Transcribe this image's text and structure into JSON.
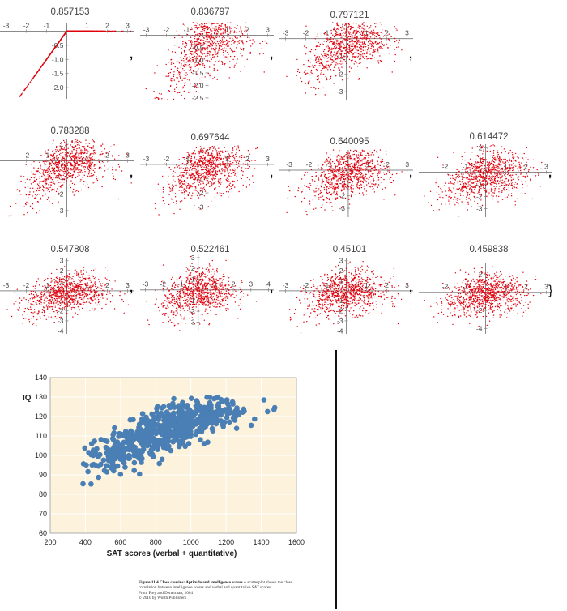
{
  "separators": {
    "comma": ",",
    "close_brace": "}"
  },
  "scatter_color": "#e0000c",
  "chart_data": [
    {
      "type": "scatter",
      "title": "0.857153",
      "xlim": [
        -3.3,
        3.3
      ],
      "ylim": [
        -2.4,
        0.3
      ],
      "xticks": [
        -3,
        -2,
        -1,
        1,
        2,
        3
      ],
      "yticks": [
        -0.5,
        -1.0,
        -1.5,
        -2.0
      ],
      "ytick_labels": [
        "-0.5",
        "-1.0",
        "-1.5",
        "-2.0"
      ],
      "correlation": 0.857153
    },
    {
      "type": "scatter",
      "title": "0.836797",
      "xlim": [
        -3.3,
        3.3
      ],
      "ylim": [
        -2.6,
        0.5
      ],
      "xticks": [
        -3,
        -2,
        -1,
        1,
        2,
        3
      ],
      "yticks": [
        -0.5,
        -1.0,
        -1.5,
        -2.0,
        -2.5
      ],
      "ytick_labels": [
        "-0.5",
        "-1.0",
        "-1.5",
        "-2.0",
        "-2.5"
      ],
      "correlation": 0.836797
    },
    {
      "type": "scatter",
      "title": "0.797121",
      "xlim": [
        -3.3,
        3.3
      ],
      "ylim": [
        -3.5,
        0.9
      ],
      "xticks": [
        -3,
        -2,
        -1,
        1,
        2,
        3
      ],
      "yticks": [
        -1,
        -2,
        -3
      ],
      "ytick_labels": [
        "-1",
        "-2",
        "-3"
      ],
      "correlation": 0.797121
    },
    {
      "type": "scatter",
      "title": "0.783288",
      "xlim": [
        -3.3,
        3.3
      ],
      "ylim": [
        -3.4,
        1.3
      ],
      "xticks": [
        -2,
        -1,
        1,
        2,
        3
      ],
      "yticks": [
        1,
        -1,
        -2,
        -3
      ],
      "ytick_labels": [
        "1",
        "-1",
        "-2",
        "-3"
      ],
      "correlation": 0.783288
    },
    {
      "type": "scatter",
      "title": "0.697644",
      "xlim": [
        -3.3,
        3.3
      ],
      "ylim": [
        -3.7,
        1.3
      ],
      "xticks": [
        -3,
        -2,
        -1,
        1,
        2,
        3
      ],
      "yticks": [
        1,
        -1,
        -2,
        -3
      ],
      "ytick_labels": [
        "1",
        "-1",
        "-2",
        "-3"
      ],
      "correlation": 0.697644
    },
    {
      "type": "scatter",
      "title": "0.640095",
      "xlim": [
        -3.5,
        3.3
      ],
      "ylim": [
        -3.7,
        1.6
      ],
      "xticks": [
        -3,
        -2,
        -1,
        1,
        2,
        3
      ],
      "yticks": [
        1,
        -1,
        -2,
        -3
      ],
      "ytick_labels": [
        "1",
        "-1",
        "-2",
        "-3"
      ],
      "correlation": 0.640095
    },
    {
      "type": "scatter",
      "title": "0.614472",
      "xlim": [
        -3.3,
        3.3
      ],
      "ylim": [
        -3.7,
        2.3
      ],
      "xticks": [
        -2,
        -1,
        1,
        2,
        3
      ],
      "yticks": [
        2,
        1,
        -1,
        -2,
        -3
      ],
      "ytick_labels": [
        "2",
        "1",
        "-1",
        "-2",
        "-3"
      ],
      "correlation": 0.614472
    },
    {
      "type": "scatter",
      "title": "0.547808",
      "xlim": [
        -3.3,
        3.3
      ],
      "ylim": [
        -4.3,
        3.3
      ],
      "xticks": [
        -3,
        -2,
        -1,
        1,
        2,
        3
      ],
      "yticks": [
        3,
        2,
        1,
        -1,
        -2,
        -3,
        -4
      ],
      "ytick_labels": [
        "3",
        "2",
        "1",
        "-1",
        "-2",
        "-3",
        "-4"
      ],
      "correlation": 0.547808
    },
    {
      "type": "scatter",
      "title": "0.522461",
      "xlim": [
        -3.3,
        4.3
      ],
      "ylim": [
        -3.8,
        3.3
      ],
      "xticks": [
        -3,
        -2,
        -1,
        1,
        2,
        3,
        4
      ],
      "yticks": [
        3,
        2,
        1,
        -1,
        -2,
        -3
      ],
      "ytick_labels": [
        "3",
        "2",
        "1",
        "-1",
        "-2",
        "-3"
      ],
      "correlation": 0.522461
    },
    {
      "type": "scatter",
      "title": "0.45101",
      "xlim": [
        -3.3,
        3.3
      ],
      "ylim": [
        -4.3,
        3.3
      ],
      "xticks": [
        -3,
        -2,
        -1,
        1,
        2,
        3
      ],
      "yticks": [
        3,
        2,
        1,
        -1,
        -2,
        -3,
        -4
      ],
      "ytick_labels": [
        "3",
        "2",
        "1",
        "-1",
        "-2",
        "-3",
        "-4"
      ],
      "correlation": 0.45101
    },
    {
      "type": "scatter",
      "title": "0.459838",
      "xlim": [
        -3.3,
        3.3
      ],
      "ylim": [
        -4.6,
        3.2
      ],
      "xticks": [
        -2,
        -1,
        1,
        2,
        3
      ],
      "yticks": [
        2,
        -2,
        -4
      ],
      "ytick_labels": [
        "2",
        "-2",
        "-4"
      ],
      "correlation": 0.459838
    },
    {
      "type": "scatter",
      "title": "",
      "xlabel": "SAT scores (verbal + quantitative)",
      "ylabel": "IQ",
      "xlim": [
        200,
        1600
      ],
      "ylim": [
        60,
        140
      ],
      "xticks": [
        200,
        400,
        600,
        800,
        1000,
        1200,
        1400,
        1600
      ],
      "yticks": [
        60,
        70,
        80,
        90,
        100,
        110,
        120,
        130,
        140
      ],
      "grid": true,
      "background": "#fdf3dc",
      "point_color": "#4a7fb5",
      "trend": [
        [
          380,
          95
        ],
        [
          500,
          100
        ],
        [
          700,
          108
        ],
        [
          900,
          115
        ],
        [
          1100,
          120
        ],
        [
          1300,
          123
        ],
        [
          1500,
          124
        ]
      ]
    }
  ],
  "caption": {
    "figure_label": "Figure 11.4",
    "figure_title": "Close cousins: Aptitude and intelligence scores",
    "figure_text_1": "A scatterplot shows the close",
    "figure_text_2": "correlation between intelligence scores and verbal and quantitative SAT scores.",
    "source": "From Frey and Detterman, 2004",
    "copyright": "© 2010 by Worth Publishers"
  }
}
